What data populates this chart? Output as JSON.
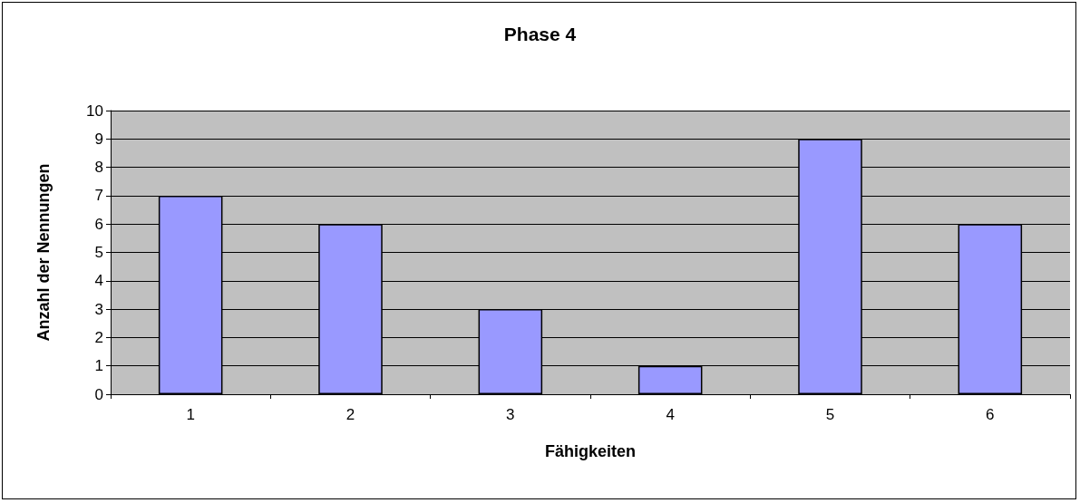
{
  "chart_data": {
    "type": "bar",
    "title": "Phase 4",
    "xlabel": "Fähigkeiten",
    "ylabel": "Anzahl der Nennungen",
    "categories": [
      "1",
      "2",
      "3",
      "4",
      "5",
      "6"
    ],
    "values": [
      7,
      6,
      3,
      1,
      9,
      6
    ],
    "color": "#9999ff",
    "ylim": [
      0,
      10
    ],
    "yticks": [
      0,
      1,
      2,
      3,
      4,
      5,
      6,
      7,
      8,
      9,
      10
    ],
    "grid": "y"
  }
}
